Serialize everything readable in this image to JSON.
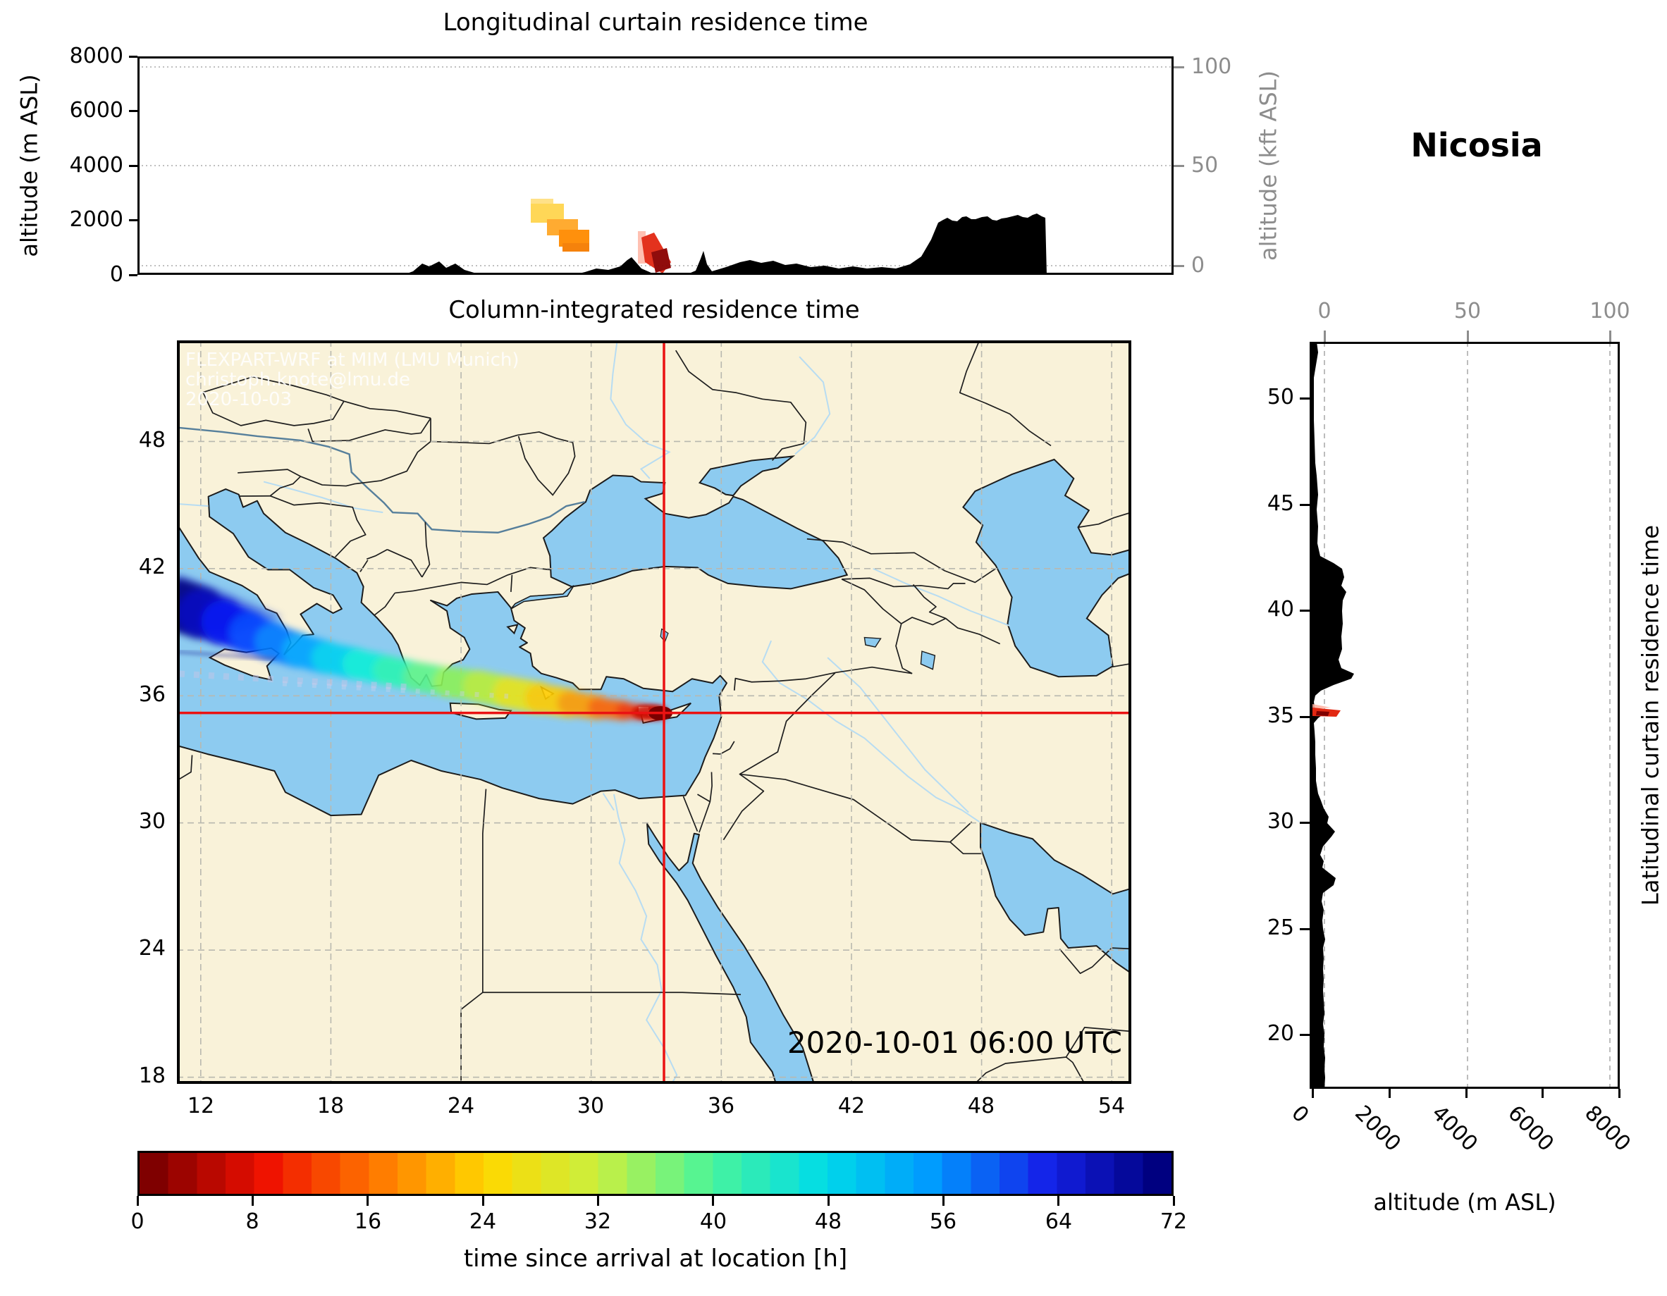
{
  "station": {
    "title": "Nicosia"
  },
  "panels": {
    "longitudinal": {
      "title": "Longitudinal curtain residence time",
      "ylabel_left": "altitude (m ASL)",
      "ylabel_right": "altitude (kft ASL)",
      "yticks_left": [
        "8000",
        "6000",
        "4000",
        "2000",
        "0"
      ],
      "yticks_right": [
        "100",
        "50",
        "0"
      ]
    },
    "map": {
      "title": "Column-integrated residence time",
      "timestamp": "2020-10-01 06:00 UTC",
      "watermark": [
        "FLEXPART-WRF at MIM (LMU Munich)",
        "christoph.knote@lmu.de",
        "2020-10-03"
      ],
      "lon_ticks": [
        "12",
        "18",
        "24",
        "30",
        "36",
        "42",
        "48",
        "54"
      ],
      "lat_ticks": [
        "48",
        "42",
        "36",
        "30",
        "24",
        "18"
      ]
    },
    "latitudinal": {
      "ylabel_right": "Latitudinal curtain residence time",
      "xlabel": "altitude (m ASL)",
      "top_ticks": [
        "0",
        "50",
        "100"
      ],
      "lat_ticks": [
        "50",
        "45",
        "40",
        "35",
        "30",
        "25",
        "20"
      ],
      "alt_ticks": [
        "0",
        "2000",
        "4000",
        "6000",
        "8000"
      ]
    },
    "colorbar": {
      "label": "time since arrival at location [h]",
      "ticks": [
        "0",
        "8",
        "16",
        "24",
        "32",
        "40",
        "48",
        "56",
        "64",
        "72"
      ]
    }
  },
  "chart_data": {
    "type": "map-trajectory-multipanel",
    "description": "FLEXPART-WRF backward residence-time plume arriving at Nicosia; column-integrated map plus longitudinal and latitudinal curtain panels.",
    "receptor": {
      "name": "Nicosia",
      "lon": 33.36,
      "lat": 35.19
    },
    "map_extent": {
      "lon": [
        10.9,
        55.0
      ],
      "lat": [
        17.6,
        52.8
      ],
      "grid_step_deg": 6
    },
    "colorbar": {
      "label": "time since arrival at location [h]",
      "range": [
        0,
        72
      ],
      "tick_step": 8,
      "n_blocks": 36,
      "anchor_hours": [
        0,
        8,
        16,
        24,
        32,
        40,
        48,
        56,
        64,
        72
      ],
      "anchor_colors": [
        "#7f0000",
        "#ef1000",
        "#ff7800",
        "#ffd800",
        "#c8f040",
        "#48f49c",
        "#00dce8",
        "#0098ff",
        "#1522e8",
        "#000080"
      ]
    },
    "plume": {
      "note": "time since arrival (h) along column-integrated plume; width = visual plume width px",
      "points": [
        {
          "h": 72,
          "lon": 10.9,
          "lat": 40.3,
          "w": 78,
          "c": "#000083"
        },
        {
          "h": 68,
          "lon": 12.0,
          "lat": 39.9,
          "w": 70,
          "c": "#0000b8"
        },
        {
          "h": 64,
          "lon": 13.0,
          "lat": 39.5,
          "w": 63,
          "c": "#0010f0"
        },
        {
          "h": 60,
          "lon": 14.2,
          "lat": 39.0,
          "w": 57,
          "c": "#0040ff"
        },
        {
          "h": 56,
          "lon": 15.3,
          "lat": 38.55,
          "w": 52,
          "c": "#0078ff"
        },
        {
          "h": 52,
          "lon": 16.5,
          "lat": 38.15,
          "w": 48,
          "c": "#00a4ff"
        },
        {
          "h": 48,
          "lon": 17.8,
          "lat": 37.8,
          "w": 45,
          "c": "#00d0f0"
        },
        {
          "h": 44,
          "lon": 19.2,
          "lat": 37.5,
          "w": 43,
          "c": "#0ceed8"
        },
        {
          "h": 40,
          "lon": 20.6,
          "lat": 37.2,
          "w": 41,
          "c": "#2cf4b4"
        },
        {
          "h": 36,
          "lon": 22.0,
          "lat": 36.9,
          "w": 41,
          "c": "#58f28c"
        },
        {
          "h": 32,
          "lon": 23.4,
          "lat": 36.65,
          "w": 42,
          "c": "#8cf158"
        },
        {
          "h": 28,
          "lon": 24.8,
          "lat": 36.45,
          "w": 44,
          "c": "#baee38"
        },
        {
          "h": 24,
          "lon": 26.2,
          "lat": 36.15,
          "w": 46,
          "c": "#e8e418"
        },
        {
          "h": 20,
          "lon": 27.6,
          "lat": 35.9,
          "w": 44,
          "c": "#ffcc00"
        },
        {
          "h": 16,
          "lon": 29.0,
          "lat": 35.65,
          "w": 38,
          "c": "#ff9c00"
        },
        {
          "h": 12,
          "lon": 30.3,
          "lat": 35.45,
          "w": 31,
          "c": "#ff6400"
        },
        {
          "h": 8,
          "lon": 31.5,
          "lat": 35.3,
          "w": 25,
          "c": "#f83200"
        },
        {
          "h": 4,
          "lon": 32.4,
          "lat": 35.22,
          "w": 19,
          "c": "#cc0f08"
        },
        {
          "h": 0,
          "lon": 33.2,
          "lat": 35.19,
          "w": 15,
          "c": "#7f0000"
        }
      ]
    },
    "longitudinal_curtain": {
      "x_range_lon": [
        10.9,
        54.9
      ],
      "alt_range_m": [
        0,
        8000
      ],
      "kft_axis_ticks": [
        0,
        50,
        100
      ],
      "plume_patches": [
        {
          "lon": [
            27.6,
            29.0
          ],
          "alt_m": [
            1900,
            2600
          ],
          "hours": "16-20",
          "color": "#ffd54f"
        },
        {
          "lon": [
            28.3,
            29.6
          ],
          "alt_m": [
            1450,
            2050
          ],
          "hours": "12-16",
          "color": "#ffa726"
        },
        {
          "lon": [
            28.8,
            30.1
          ],
          "alt_m": [
            800,
            1650
          ],
          "hours": "12",
          "color": "#ff8b00"
        },
        {
          "lon": [
            32.1,
            33.5
          ],
          "alt_m": [
            100,
            1600
          ],
          "hours": "0-8",
          "color": "#e22812"
        }
      ],
      "terrain_profile_lon_alt": [
        [
          10.9,
          0
        ],
        [
          22.2,
          0
        ],
        [
          23.0,
          420
        ],
        [
          23.7,
          480
        ],
        [
          24.4,
          400
        ],
        [
          25.7,
          0
        ],
        [
          29.4,
          0
        ],
        [
          30.4,
          230
        ],
        [
          31.9,
          650
        ],
        [
          33.2,
          0
        ],
        [
          34.2,
          0
        ],
        [
          34.95,
          870
        ],
        [
          35.3,
          140
        ],
        [
          36.9,
          550
        ],
        [
          37.9,
          510
        ],
        [
          38.9,
          410
        ],
        [
          40.1,
          340
        ],
        [
          41.3,
          310
        ],
        [
          42.5,
          290
        ],
        [
          43.7,
          390
        ],
        [
          44.9,
          1900
        ],
        [
          45.3,
          2080
        ],
        [
          46.1,
          2130
        ],
        [
          47.0,
          2140
        ],
        [
          48.3,
          2190
        ],
        [
          49.1,
          2240
        ],
        [
          49.5,
          0
        ],
        [
          54.9,
          0
        ]
      ]
    },
    "latitudinal_curtain": {
      "y_range_lat": [
        17.6,
        52.8
      ],
      "alt_range_m": [
        0,
        8000
      ],
      "plume_patches": [
        {
          "lat": [
            35.05,
            35.35
          ],
          "alt_m": [
            0,
            700
          ],
          "hours": "0-8",
          "color": "#e22812"
        }
      ],
      "terrain_profile_lat_alt": [
        [
          52.7,
          120
        ],
        [
          51.0,
          40
        ],
        [
          48.0,
          60
        ],
        [
          46.4,
          120
        ],
        [
          44.0,
          150
        ],
        [
          42.6,
          200
        ],
        [
          42.0,
          780
        ],
        [
          40.9,
          880
        ],
        [
          40.0,
          780
        ],
        [
          38.8,
          760
        ],
        [
          37.05,
          1080
        ],
        [
          36.5,
          560
        ],
        [
          36.0,
          80
        ],
        [
          35.3,
          260
        ],
        [
          34.7,
          40
        ],
        [
          33.2,
          80
        ],
        [
          31.05,
          230
        ],
        [
          30.3,
          430
        ],
        [
          29.6,
          580
        ],
        [
          28.5,
          210
        ],
        [
          27.4,
          600
        ],
        [
          26.3,
          240
        ],
        [
          25.0,
          270
        ],
        [
          24.5,
          340
        ],
        [
          23.1,
          270
        ],
        [
          21.0,
          310
        ],
        [
          20.0,
          310
        ],
        [
          18.9,
          330
        ],
        [
          17.6,
          320
        ]
      ]
    }
  }
}
